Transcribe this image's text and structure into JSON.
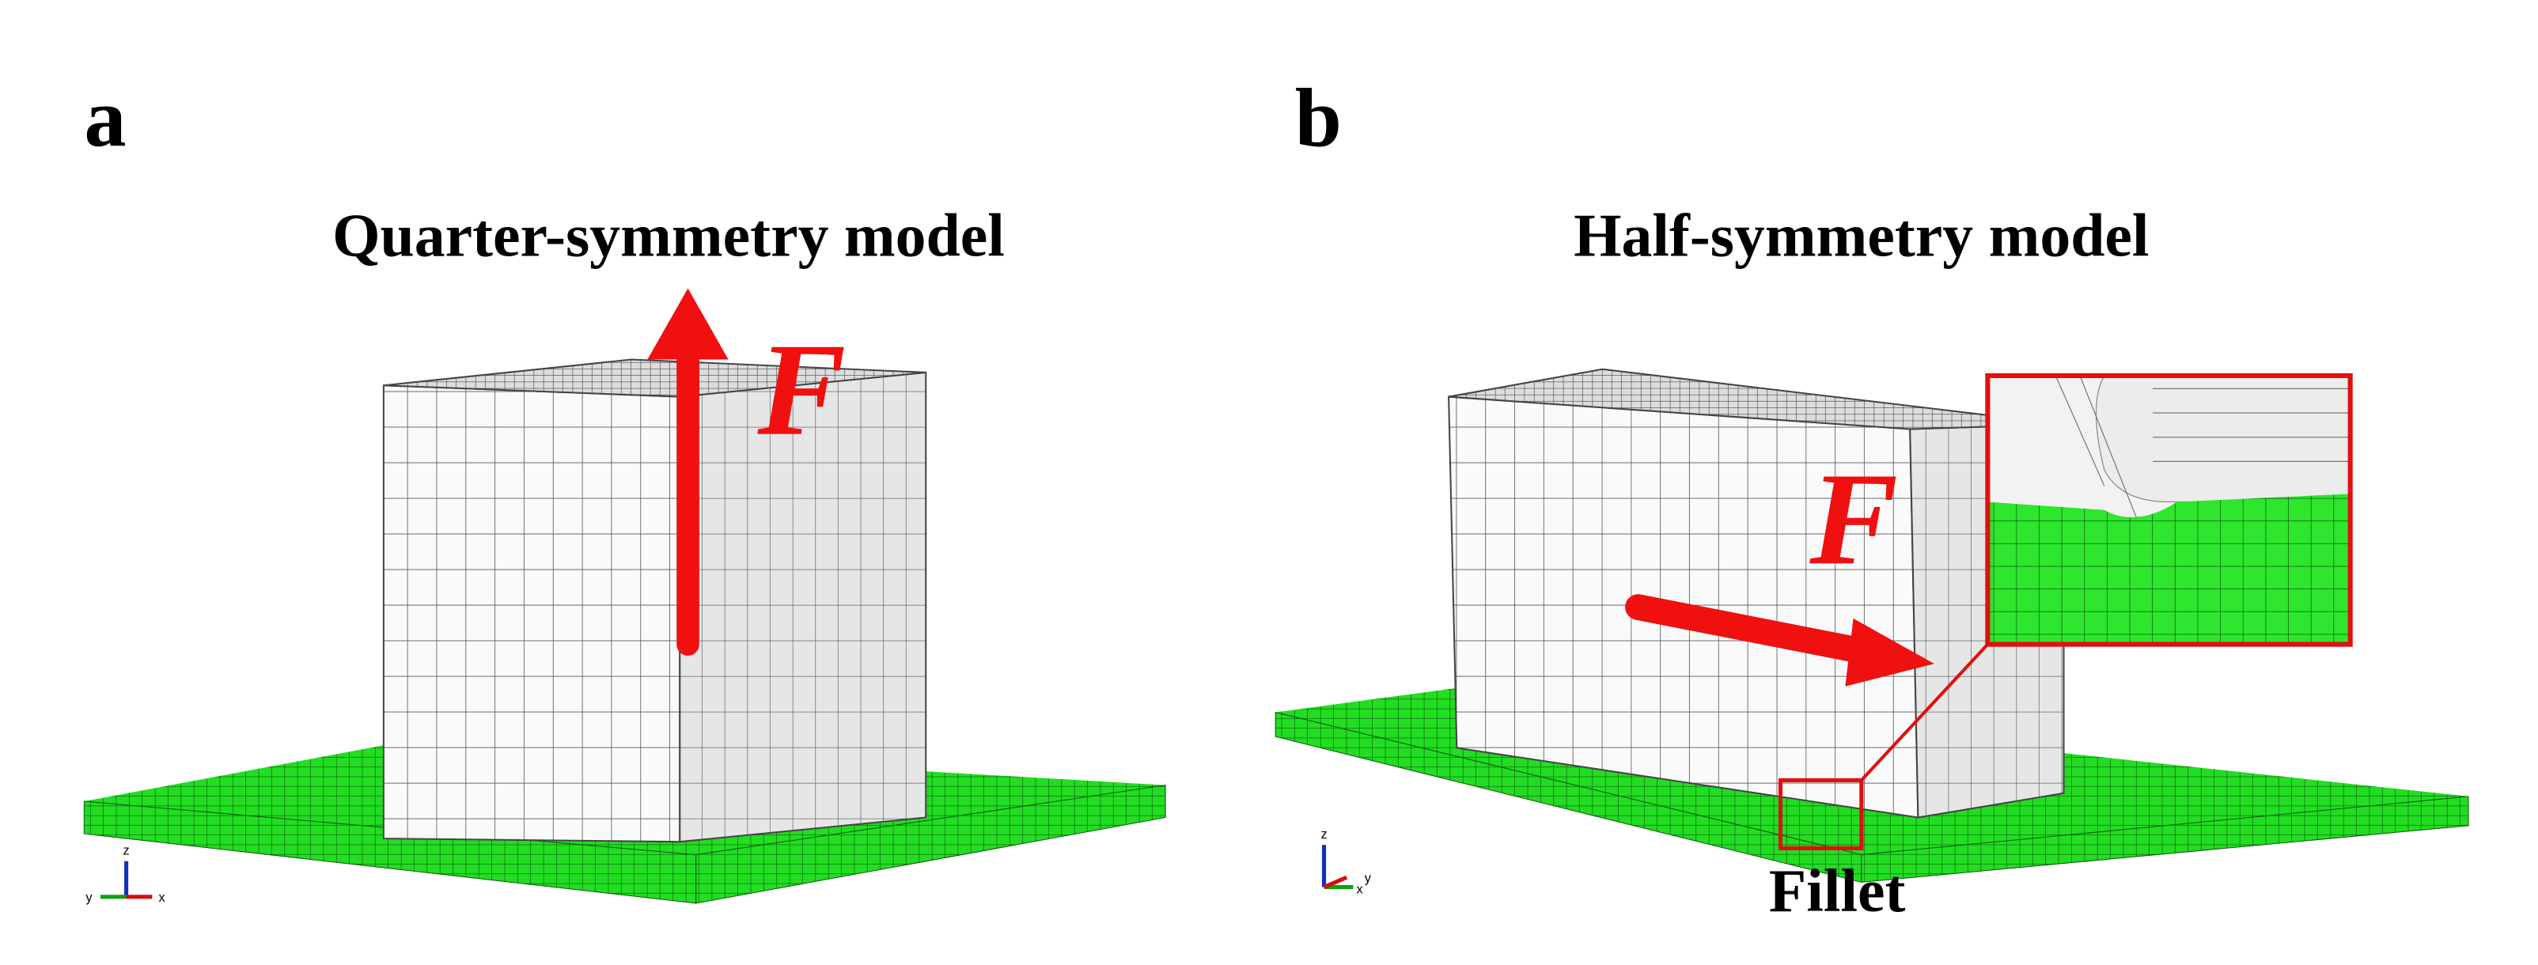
{
  "panels": [
    {
      "label": "a",
      "title": "Quarter-symmetry model",
      "force_label": "F",
      "axes": [
        "z",
        "y",
        "x"
      ]
    },
    {
      "label": "b",
      "title": "Half-symmetry model",
      "force_label": "F",
      "callout": "Fillet",
      "axes": [
        "z",
        "x",
        "y"
      ]
    }
  ]
}
